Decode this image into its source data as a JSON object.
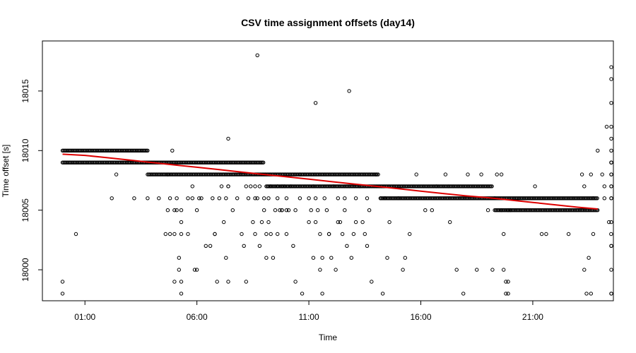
{
  "chart_data": {
    "type": "scatter",
    "title": "CSV time assignment offsets (day14)",
    "xlabel": "Time",
    "ylabel": "Time offset [s]",
    "x_unit": "hours since 00:00",
    "xlim": [
      -0.9,
      24.6
    ],
    "ylim": [
      17997.4,
      18019.2
    ],
    "x_ticks": [
      {
        "value": 1,
        "label": "01:00"
      },
      {
        "value": 6,
        "label": "06:00"
      },
      {
        "value": 11,
        "label": "11:00"
      },
      {
        "value": 16,
        "label": "16:00"
      },
      {
        "value": 21,
        "label": "21:00"
      }
    ],
    "y_ticks": [
      {
        "value": 18000,
        "label": "18000"
      },
      {
        "value": 18005,
        "label": "18005"
      },
      {
        "value": 18010,
        "label": "18010"
      },
      {
        "value": 18015,
        "label": "18015"
      }
    ],
    "series": [
      {
        "name": "dense offset bands",
        "style": "open-circle-band",
        "color": "#000000",
        "bands": [
          {
            "y": 18010,
            "x_start": 0.0,
            "x_end": 3.8
          },
          {
            "y": 18009,
            "x_start": 0.0,
            "x_end": 9.0
          },
          {
            "y": 18008,
            "x_start": 3.8,
            "x_end": 14.1
          },
          {
            "y": 18007,
            "x_start": 9.1,
            "x_end": 19.2
          },
          {
            "y": 18006,
            "x_start": 14.2,
            "x_end": 23.9
          },
          {
            "y": 18005,
            "x_start": 19.3,
            "x_end": 23.9
          }
        ]
      },
      {
        "name": "scattered offsets",
        "style": "open-circle",
        "color": "#000000",
        "points": [
          [
            0.0,
            17999
          ],
          [
            0.0,
            17998
          ],
          [
            0.6,
            18003
          ],
          [
            2.2,
            18006
          ],
          [
            2.4,
            18008
          ],
          [
            3.2,
            18006
          ],
          [
            3.8,
            18006
          ],
          [
            4.3,
            18006
          ],
          [
            4.6,
            18003
          ],
          [
            4.7,
            18008
          ],
          [
            4.7,
            18005
          ],
          [
            4.8,
            18006
          ],
          [
            4.8,
            18003
          ],
          [
            4.9,
            18010
          ],
          [
            5.0,
            18005
          ],
          [
            5.0,
            17999
          ],
          [
            5.0,
            18003
          ],
          [
            5.1,
            18005
          ],
          [
            5.1,
            18006
          ],
          [
            5.2,
            18001
          ],
          [
            5.2,
            18000
          ],
          [
            5.3,
            18004
          ],
          [
            5.3,
            18003
          ],
          [
            5.3,
            18005
          ],
          [
            5.3,
            17998
          ],
          [
            5.3,
            17999
          ],
          [
            5.6,
            18006
          ],
          [
            5.6,
            18003
          ],
          [
            5.8,
            18006
          ],
          [
            5.8,
            18007
          ],
          [
            5.9,
            18000
          ],
          [
            6.0,
            18000
          ],
          [
            6.0,
            18005
          ],
          [
            6.1,
            18006
          ],
          [
            6.2,
            18006
          ],
          [
            6.4,
            18002
          ],
          [
            6.6,
            18002
          ],
          [
            6.7,
            18006
          ],
          [
            6.8,
            18003
          ],
          [
            6.8,
            18003
          ],
          [
            6.9,
            17999
          ],
          [
            7.0,
            18006
          ],
          [
            7.1,
            18007
          ],
          [
            7.2,
            18004
          ],
          [
            7.3,
            18006
          ],
          [
            7.3,
            18001
          ],
          [
            7.4,
            18011
          ],
          [
            7.4,
            18007
          ],
          [
            7.4,
            18007
          ],
          [
            7.4,
            17999
          ],
          [
            7.6,
            18005
          ],
          [
            7.8,
            18006
          ],
          [
            8.0,
            18003
          ],
          [
            8.1,
            18002
          ],
          [
            8.2,
            18007
          ],
          [
            8.2,
            17999
          ],
          [
            8.3,
            18006
          ],
          [
            8.4,
            18007
          ],
          [
            8.5,
            18004
          ],
          [
            8.6,
            18003
          ],
          [
            8.6,
            18006
          ],
          [
            8.6,
            18007
          ],
          [
            8.7,
            18018
          ],
          [
            8.7,
            18006
          ],
          [
            8.8,
            18007
          ],
          [
            8.8,
            18002
          ],
          [
            8.9,
            18004
          ],
          [
            9.0,
            18005
          ],
          [
            9.0,
            18006
          ],
          [
            9.1,
            18003
          ],
          [
            9.1,
            18001
          ],
          [
            9.2,
            18004
          ],
          [
            9.2,
            18006
          ],
          [
            9.3,
            18003
          ],
          [
            9.3,
            18007
          ],
          [
            9.4,
            18001
          ],
          [
            9.5,
            18005
          ],
          [
            9.6,
            18006
          ],
          [
            9.6,
            18003
          ],
          [
            9.6,
            18007
          ],
          [
            9.7,
            18005
          ],
          [
            9.8,
            18007
          ],
          [
            9.8,
            18005
          ],
          [
            9.8,
            18005
          ],
          [
            9.9,
            18007
          ],
          [
            10.0,
            18003
          ],
          [
            10.0,
            18006
          ],
          [
            10.0,
            18005
          ],
          [
            10.1,
            18005
          ],
          [
            10.2,
            18007
          ],
          [
            10.3,
            18002
          ],
          [
            10.4,
            18005
          ],
          [
            10.4,
            17999
          ],
          [
            10.6,
            18006
          ],
          [
            10.6,
            18008
          ],
          [
            10.7,
            17998
          ],
          [
            11.0,
            18006
          ],
          [
            11.0,
            18004
          ],
          [
            11.1,
            18005
          ],
          [
            11.2,
            18007
          ],
          [
            11.2,
            18001
          ],
          [
            11.3,
            18006
          ],
          [
            11.3,
            18014
          ],
          [
            11.3,
            18004
          ],
          [
            11.4,
            18005
          ],
          [
            11.5,
            18000
          ],
          [
            11.5,
            18003
          ],
          [
            11.6,
            18001
          ],
          [
            11.6,
            17998
          ],
          [
            11.7,
            18006
          ],
          [
            11.8,
            18005
          ],
          [
            11.9,
            18003
          ],
          [
            11.9,
            18003
          ],
          [
            12.0,
            18001
          ],
          [
            12.1,
            18007
          ],
          [
            12.2,
            18000
          ],
          [
            12.3,
            18006
          ],
          [
            12.3,
            18004
          ],
          [
            12.4,
            18004
          ],
          [
            12.5,
            18003
          ],
          [
            12.6,
            18006
          ],
          [
            12.6,
            18005
          ],
          [
            12.7,
            18002
          ],
          [
            12.8,
            18015
          ],
          [
            12.9,
            18001
          ],
          [
            13.0,
            18003
          ],
          [
            13.1,
            18006
          ],
          [
            13.1,
            18004
          ],
          [
            13.3,
            18007
          ],
          [
            13.4,
            18004
          ],
          [
            13.5,
            18003
          ],
          [
            13.6,
            18002
          ],
          [
            13.6,
            18006
          ],
          [
            13.7,
            18005
          ],
          [
            13.8,
            17999
          ],
          [
            14.0,
            18008
          ],
          [
            14.2,
            18006
          ],
          [
            14.3,
            17998
          ],
          [
            14.4,
            18006
          ],
          [
            14.5,
            18001
          ],
          [
            14.6,
            18004
          ],
          [
            15.0,
            18006
          ],
          [
            15.2,
            18000
          ],
          [
            15.3,
            18001
          ],
          [
            15.5,
            18003
          ],
          [
            15.8,
            18008
          ],
          [
            16.2,
            18005
          ],
          [
            16.5,
            18005
          ],
          [
            16.7,
            18007
          ],
          [
            17.1,
            18008
          ],
          [
            17.3,
            18004
          ],
          [
            17.6,
            18000
          ],
          [
            17.9,
            17998
          ],
          [
            18.1,
            18008
          ],
          [
            18.5,
            18000
          ],
          [
            18.7,
            18008
          ],
          [
            19.0,
            18005
          ],
          [
            19.2,
            18000
          ],
          [
            19.3,
            18006
          ],
          [
            19.4,
            18008
          ],
          [
            19.6,
            18008
          ],
          [
            19.6,
            18005
          ],
          [
            19.7,
            18003
          ],
          [
            19.7,
            18000
          ],
          [
            19.8,
            17999
          ],
          [
            19.8,
            17998
          ],
          [
            19.9,
            18005
          ],
          [
            19.9,
            17999
          ],
          [
            19.9,
            17998
          ],
          [
            20.0,
            18005
          ],
          [
            21.1,
            18007
          ],
          [
            21.4,
            18003
          ],
          [
            21.6,
            18003
          ],
          [
            22.6,
            18003
          ],
          [
            23.2,
            18008
          ],
          [
            23.3,
            18007
          ],
          [
            23.3,
            18000
          ],
          [
            23.4,
            17998
          ],
          [
            23.5,
            18001
          ],
          [
            23.6,
            18008
          ],
          [
            23.6,
            17998
          ],
          [
            23.7,
            18006
          ],
          [
            23.7,
            18003
          ],
          [
            23.9,
            18010
          ],
          [
            24.1,
            18008
          ],
          [
            24.2,
            18007
          ],
          [
            24.2,
            18006
          ],
          [
            24.3,
            18012
          ],
          [
            24.4,
            18004
          ],
          [
            24.5,
            18003
          ],
          [
            24.6,
            17998
          ],
          [
            24.7,
            18009
          ],
          [
            24.8,
            18009
          ],
          [
            24.8,
            18007
          ],
          [
            24.9,
            18007
          ],
          [
            24.9,
            17998
          ],
          [
            25.0,
            18010
          ],
          [
            25.0,
            18008
          ],
          [
            25.1,
            18006
          ],
          [
            25.1,
            18002
          ],
          [
            25.2,
            18002
          ],
          [
            25.3,
            18008
          ],
          [
            25.4,
            18011
          ],
          [
            25.5,
            18004
          ],
          [
            25.5,
            18000
          ],
          [
            25.5,
            18009
          ],
          [
            25.5,
            18014
          ],
          [
            25.6,
            18006
          ],
          [
            25.6,
            18012
          ],
          [
            25.7,
            18016
          ],
          [
            25.7,
            18017
          ]
        ]
      },
      {
        "name": "trend",
        "style": "line",
        "color": "#dd0000",
        "x": [
          0.0,
          1.0,
          2.0,
          3.0,
          4.0,
          5.0,
          6.0,
          7.0,
          8.0,
          9.0,
          10.0,
          11.0,
          12.0,
          13.0,
          14.0,
          15.0,
          16.0,
          17.0,
          18.0,
          19.0,
          20.0,
          21.0,
          22.0,
          23.0,
          23.9
        ],
        "y": [
          18009.7,
          18009.6,
          18009.4,
          18009.2,
          18009.0,
          18008.8,
          18008.6,
          18008.4,
          18008.2,
          18008.0,
          18007.8,
          18007.6,
          18007.4,
          18007.2,
          18007.0,
          18006.8,
          18006.6,
          18006.4,
          18006.2,
          18006.05,
          18005.85,
          18005.65,
          18005.45,
          18005.25,
          18005.1
        ]
      }
    ]
  }
}
